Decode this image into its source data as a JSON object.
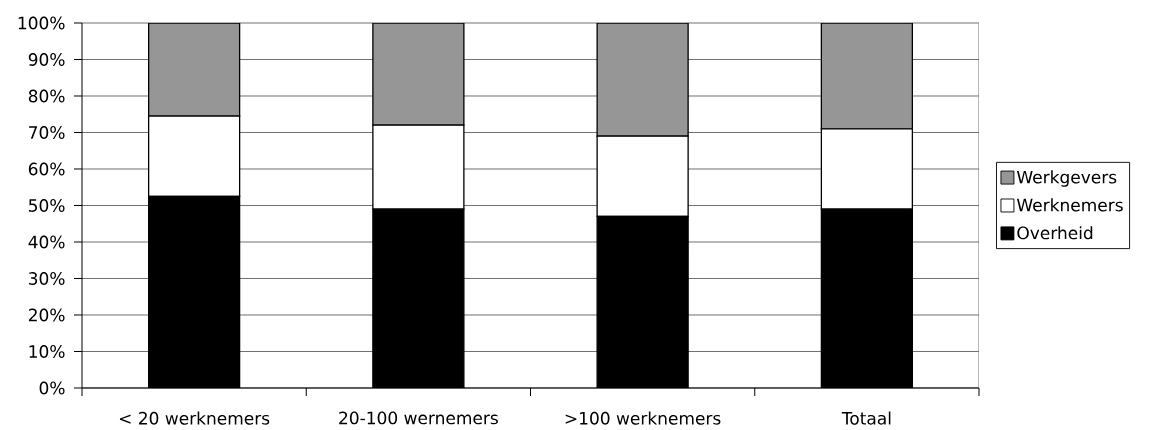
{
  "chart_data": {
    "type": "bar",
    "stacked": true,
    "categories": [
      "< 20 werknemers",
      "20-100 wernemers",
      ">100 werknemers",
      "Totaal"
    ],
    "series": [
      {
        "name": "Overheid",
        "color": "#000000",
        "values": [
          52.5,
          49,
          47,
          49
        ]
      },
      {
        "name": "Werknemers",
        "color": "#ffffff",
        "values": [
          22,
          23,
          22,
          22
        ]
      },
      {
        "name": "Werkgevers",
        "color": "#969696",
        "values": [
          25.5,
          28,
          31,
          29
        ]
      }
    ],
    "ylim": [
      0,
      100
    ],
    "yticks": [
      {
        "value": 0,
        "label": "0%"
      },
      {
        "value": 10,
        "label": "10%"
      },
      {
        "value": 20,
        "label": "20%"
      },
      {
        "value": 30,
        "label": "30%"
      },
      {
        "value": 40,
        "label": "40%"
      },
      {
        "value": 50,
        "label": "50%"
      },
      {
        "value": 60,
        "label": "60%"
      },
      {
        "value": 70,
        "label": "70%"
      },
      {
        "value": 80,
        "label": "80%"
      },
      {
        "value": 90,
        "label": "90%"
      },
      {
        "value": 100,
        "label": "100%"
      }
    ],
    "grid": "y",
    "legend": "right"
  }
}
